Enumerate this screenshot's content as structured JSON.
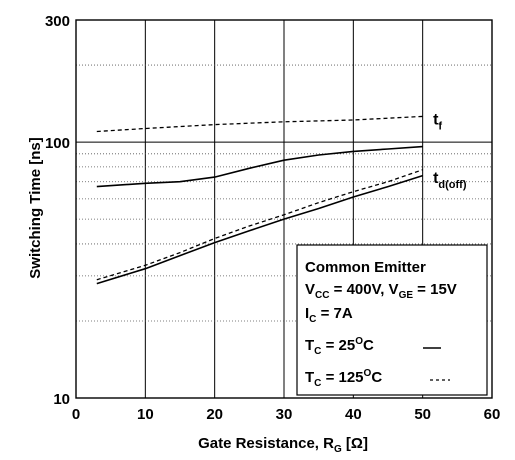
{
  "chart_data": {
    "type": "line",
    "xlabel": "Gate Resistance, R",
    "xlabel_sub": "G",
    "xlabel_unit": " [Ω]",
    "ylabel": "Switching Time [ns]",
    "xlim": [
      0,
      60
    ],
    "ylim": [
      10,
      300
    ],
    "yscale": "log",
    "grid": true,
    "x_ticks": [
      0,
      10,
      20,
      30,
      40,
      50,
      60
    ],
    "x_tick_labels": [
      "0",
      "10",
      "20",
      "30",
      "40",
      "50",
      "60"
    ],
    "y_ticks": [
      10,
      100,
      300
    ],
    "y_tick_labels": [
      "10",
      "100",
      "300"
    ],
    "y_minor_grid": [
      20,
      30,
      40,
      50,
      60,
      70,
      80,
      90,
      200
    ],
    "series": [
      {
        "label_main": "t",
        "label_sub": "f",
        "temperature": "25",
        "dash": "solid",
        "points": [
          [
            3,
            67
          ],
          [
            10,
            69
          ],
          [
            15,
            70
          ],
          [
            20,
            73
          ],
          [
            25,
            79
          ],
          [
            30,
            85
          ],
          [
            35,
            89
          ],
          [
            40,
            92
          ],
          [
            45,
            94
          ],
          [
            50,
            96
          ]
        ]
      },
      {
        "temperature": "25",
        "dash": "solid",
        "points": [
          [
            3,
            28
          ],
          [
            10,
            32
          ],
          [
            15,
            36
          ],
          [
            20,
            40.5
          ],
          [
            25,
            45
          ],
          [
            30,
            50
          ],
          [
            35,
            55
          ],
          [
            40,
            61
          ],
          [
            45,
            67
          ],
          [
            50,
            74
          ]
        ]
      },
      {
        "temperature": "125",
        "dash": "dashed",
        "points": [
          [
            3,
            110
          ],
          [
            10,
            113
          ],
          [
            20,
            117
          ],
          [
            30,
            120
          ],
          [
            40,
            122
          ],
          [
            50,
            126
          ]
        ]
      },
      {
        "label_main": "t",
        "label_sub": "d(off)",
        "temperature": "125",
        "dash": "dashed",
        "points": [
          [
            3,
            29
          ],
          [
            10,
            33
          ],
          [
            15,
            37
          ],
          [
            20,
            42
          ],
          [
            25,
            47
          ],
          [
            30,
            52
          ],
          [
            35,
            58
          ],
          [
            40,
            64
          ],
          [
            45,
            70
          ],
          [
            50,
            78
          ]
        ]
      }
    ],
    "annotations": {
      "series_labels": [
        {
          "main": "t",
          "sub": "f",
          "x": 51.5,
          "y": 126
        },
        {
          "main": "t",
          "sub": "d(off)",
          "x": 51.5,
          "y": 73
        }
      ],
      "legend_position": "bottom-right",
      "legend": {
        "line1": "Common Emitter",
        "line2_a": "V",
        "line2_a_sub": "CC",
        "line2_b": " = 400V, V",
        "line2_b_sub": "GE",
        "line2_c": " = 15V",
        "line3_a": "I",
        "line3_a_sub": "C",
        "line3_b": " = 7A",
        "line4_a": "T",
        "line4_a_sub": "C",
        "line4_b": " = 25",
        "line4_sup": "O",
        "line4_c": "C",
        "line5_a": "T",
        "line5_a_sub": "C",
        "line5_b": " = 125",
        "line5_sup": "O",
        "line5_c": "C"
      }
    }
  }
}
